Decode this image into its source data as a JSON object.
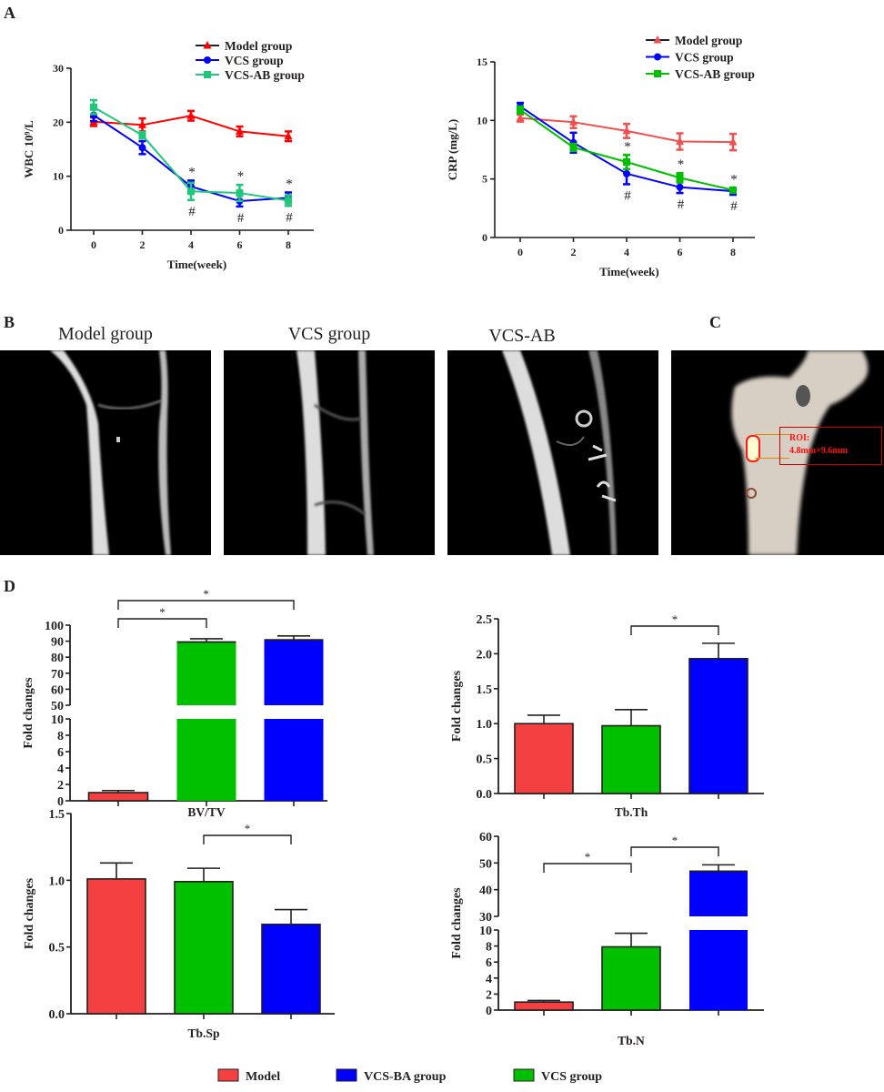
{
  "panel_labels": {
    "a": "A",
    "b": "B",
    "c": "C",
    "d": "D"
  },
  "images": {
    "model_title": "Model group",
    "vcs_title": "VCS group",
    "vcsab_title": "VCS-AB",
    "roi_label": "ROI:",
    "roi_size": "4.8mm×9.6mm"
  },
  "colors": {
    "red": "#f44040",
    "green": "#00c000",
    "blue": "#0000ff",
    "teal_green": "#1fc878",
    "line_red": "#ff0000",
    "light_red": "#f25050"
  },
  "chart_data": [
    {
      "id": "wbc",
      "type": "line",
      "title": "",
      "xlabel": "Time(week)",
      "ylabel": "WBC 10⁹/L",
      "ylim": [
        0,
        30
      ],
      "yticks": [
        "0",
        "10",
        "20",
        "30"
      ],
      "ytick_values": [
        0,
        10,
        20,
        30
      ],
      "x": [
        0,
        2,
        4,
        6,
        8
      ],
      "xticks": [
        "0",
        "2",
        "4",
        "6",
        "8"
      ],
      "legend_position": "top-right",
      "series": [
        {
          "name": "Model group",
          "color": "#ff0000",
          "marker": "triangle",
          "values": [
            20.1,
            19.5,
            21.2,
            18.3,
            17.4
          ],
          "errors": [
            0.8,
            1.2,
            0.9,
            0.9,
            0.9
          ]
        },
        {
          "name": "VCS group",
          "color": "#0000ff",
          "marker": "circle",
          "values": [
            21.3,
            15.3,
            8.1,
            5.4,
            6.0
          ],
          "errors": [
            1.1,
            1.2,
            1.1,
            1.0,
            1.0
          ]
        },
        {
          "name": "VCS-AB group",
          "color": "#1fc878",
          "marker": "square",
          "values": [
            22.8,
            17.6,
            7.2,
            6.9,
            5.5
          ],
          "errors": [
            1.3,
            0.6,
            1.6,
            1.5,
            1.0
          ]
        }
      ],
      "annotations": [
        {
          "x": 4,
          "above": "*",
          "below": "#"
        },
        {
          "x": 6,
          "above": "*",
          "below": "#"
        },
        {
          "x": 8,
          "above": "*",
          "below": "#"
        }
      ]
    },
    {
      "id": "crp",
      "type": "line",
      "title": "",
      "xlabel": "Time(week)",
      "ylabel": "CRP (mg/L)",
      "ylim": [
        0,
        15
      ],
      "yticks": [
        "0",
        "5",
        "10",
        "15"
      ],
      "ytick_values": [
        0,
        5,
        10,
        15
      ],
      "x": [
        0,
        2,
        4,
        6,
        8
      ],
      "xticks": [
        "0",
        "2",
        "4",
        "6",
        "8"
      ],
      "legend_position": "top-right",
      "series": [
        {
          "name": "Model group",
          "color": "#f25050",
          "marker": "triangle",
          "values": [
            10.2,
            9.85,
            9.1,
            8.2,
            8.15
          ],
          "errors": [
            0.3,
            0.5,
            0.6,
            0.7,
            0.7
          ]
        },
        {
          "name": "VCS group",
          "color": "#0000ff",
          "marker": "circle",
          "values": [
            11.2,
            8.1,
            5.45,
            4.3,
            3.95
          ],
          "errors": [
            0.3,
            0.85,
            0.9,
            0.5,
            0.3
          ]
        },
        {
          "name": "VCS-AB group",
          "color": "#00c000",
          "marker": "square",
          "values": [
            10.9,
            7.7,
            6.45,
            5.1,
            4.05
          ],
          "errors": [
            0.3,
            0.3,
            0.6,
            0.4,
            0.2
          ]
        }
      ],
      "annotations": [
        {
          "x": 4,
          "above": "*",
          "below": "#"
        },
        {
          "x": 6,
          "above": "*",
          "below": "#"
        },
        {
          "x": 8,
          "above": "*",
          "below": "#"
        }
      ]
    },
    {
      "id": "bvtv",
      "type": "bar",
      "xlabel": "BV/TV",
      "ylabel": "Fold changes",
      "ylim": [
        0,
        100
      ],
      "axis_break": [
        10,
        50
      ],
      "yticks": [
        "0",
        "2",
        "4",
        "6",
        "8",
        "10",
        "50",
        "60",
        "70",
        "80",
        "90",
        "100"
      ],
      "ytick_values": [
        0,
        2,
        4,
        6,
        8,
        10,
        50,
        60,
        70,
        80,
        90,
        100
      ],
      "categories": [
        "Model",
        "VCS group",
        "VCS-BA group"
      ],
      "values": [
        1.0,
        89.5,
        90.8
      ],
      "errors": [
        0.25,
        2.0,
        2.5
      ],
      "significance": [
        {
          "from": 0,
          "to": 1,
          "label": "*"
        },
        {
          "from": 0,
          "to": 2,
          "label": "*"
        }
      ]
    },
    {
      "id": "tbth",
      "type": "bar",
      "xlabel": "Tb.Th",
      "ylabel": "Fold changes",
      "ylim": [
        0,
        2.5
      ],
      "yticks": [
        "0.0",
        "0.5",
        "1.0",
        "1.5",
        "2.0",
        "2.5"
      ],
      "ytick_values": [
        0,
        0.5,
        1.0,
        1.5,
        2.0,
        2.5
      ],
      "categories": [
        "Model",
        "VCS group",
        "VCS-BA group"
      ],
      "values": [
        1.0,
        0.97,
        1.93
      ],
      "errors": [
        0.12,
        0.23,
        0.22
      ],
      "significance": [
        {
          "from": 1,
          "to": 2,
          "label": "*"
        }
      ]
    },
    {
      "id": "tbsp",
      "type": "bar",
      "xlabel": "Tb.Sp",
      "ylabel": "Fold changes",
      "ylim": [
        0,
        1.5
      ],
      "yticks": [
        "0.0",
        "0.5",
        "1.0",
        "1.5"
      ],
      "ytick_values": [
        0,
        0.5,
        1.0,
        1.5
      ],
      "categories": [
        "Model",
        "VCS group",
        "VCS-BA group"
      ],
      "values": [
        1.01,
        0.99,
        0.67
      ],
      "errors": [
        0.12,
        0.1,
        0.11
      ],
      "significance": [
        {
          "from": 1,
          "to": 2,
          "label": "*"
        }
      ]
    },
    {
      "id": "tbn",
      "type": "bar",
      "xlabel": "Tb.N",
      "ylabel": "Fold changes",
      "ylim": [
        0,
        60
      ],
      "axis_break": [
        10,
        30
      ],
      "yticks": [
        "0",
        "2",
        "4",
        "6",
        "8",
        "10",
        "30",
        "40",
        "50",
        "60"
      ],
      "ytick_values": [
        0,
        2,
        4,
        6,
        8,
        10,
        30,
        40,
        50,
        60
      ],
      "categories": [
        "Model",
        "VCS group",
        "VCS-BA group"
      ],
      "values": [
        1.0,
        7.9,
        46.9
      ],
      "errors": [
        0.2,
        1.7,
        2.4
      ],
      "significance": [
        {
          "from": 0,
          "to": 1,
          "label": "*"
        },
        {
          "from": 1,
          "to": 2,
          "label": "*"
        }
      ]
    }
  ],
  "bar_legend": [
    {
      "label": "Model",
      "color": "#f44040"
    },
    {
      "label": "VCS-BA group",
      "color": "#0000ff"
    },
    {
      "label": "VCS group",
      "color": "#00c000"
    }
  ]
}
